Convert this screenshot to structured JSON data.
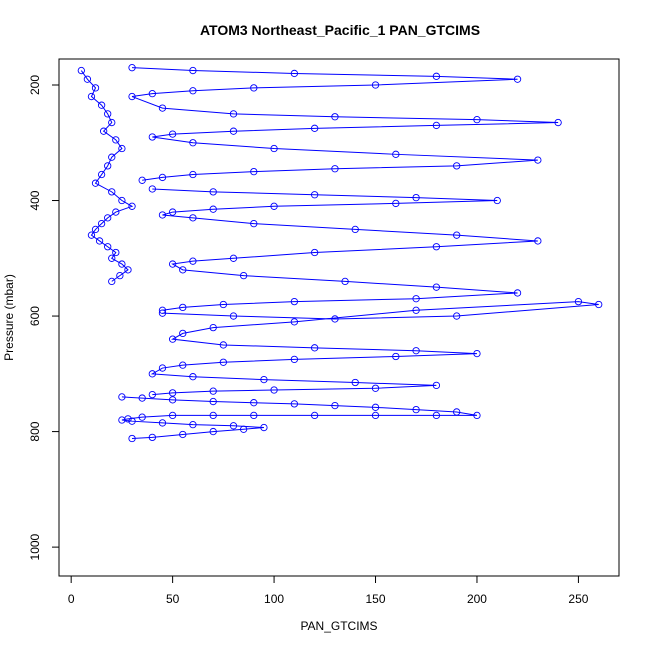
{
  "chart_data": {
    "type": "scatter",
    "title": "ATOM3 Northeast_Pacific_1 PAN_GTCIMS",
    "xlabel": "PAN_GTCIMS",
    "ylabel": "Pressure (mbar)",
    "xlim": [
      -6,
      270
    ],
    "ylim": [
      1050,
      155
    ],
    "y_reversed": true,
    "x_ticks": [
      0,
      50,
      100,
      150,
      200,
      250
    ],
    "y_ticks": [
      200,
      400,
      600,
      800,
      1000
    ],
    "marker": "open-circle",
    "connect_points": true,
    "grid": false,
    "color": "#0000ff",
    "series": [
      {
        "x": [
          5,
          8,
          12,
          10,
          15,
          18,
          20,
          16,
          22,
          25,
          20,
          18,
          15,
          12,
          20,
          25,
          30,
          22,
          18,
          15,
          12,
          10,
          14,
          18,
          22,
          20,
          25,
          28,
          24,
          20
        ],
        "y": [
          175,
          190,
          205,
          220,
          235,
          250,
          265,
          280,
          295,
          310,
          325,
          340,
          355,
          370,
          385,
          400,
          410,
          420,
          430,
          440,
          450,
          460,
          470,
          480,
          490,
          500,
          510,
          520,
          530,
          540
        ]
      },
      {
        "x": [
          30,
          60,
          110,
          180,
          220,
          150,
          90,
          60,
          40,
          30,
          45,
          80,
          130,
          200,
          240,
          180,
          120,
          80,
          50,
          40,
          60,
          100,
          160,
          230,
          190,
          130,
          90,
          60,
          45,
          35
        ],
        "y": [
          170,
          175,
          180,
          185,
          190,
          200,
          205,
          210,
          215,
          220,
          240,
          250,
          255,
          260,
          265,
          270,
          275,
          280,
          285,
          290,
          300,
          310,
          320,
          330,
          340,
          345,
          350,
          355,
          360,
          365
        ]
      },
      {
        "x": [
          40,
          70,
          120,
          170,
          210,
          160,
          100,
          70,
          50,
          45,
          60,
          90,
          140,
          190,
          230,
          180,
          120,
          80,
          60,
          50,
          55,
          85,
          135,
          180,
          220,
          170,
          110,
          75,
          55,
          45
        ],
        "y": [
          380,
          385,
          390,
          395,
          400,
          405,
          410,
          415,
          420,
          425,
          430,
          440,
          450,
          460,
          470,
          480,
          490,
          500,
          505,
          510,
          520,
          530,
          540,
          550,
          560,
          570,
          575,
          580,
          585,
          590
        ]
      },
      {
        "x": [
          45,
          80,
          130,
          190,
          260,
          250,
          170,
          110,
          70,
          55,
          50,
          75,
          120,
          170,
          200,
          160,
          110,
          75,
          55,
          45,
          40,
          60,
          95,
          140,
          180,
          150,
          100,
          70,
          50,
          40
        ],
        "y": [
          595,
          600,
          605,
          600,
          580,
          575,
          590,
          610,
          620,
          630,
          640,
          650,
          655,
          660,
          665,
          670,
          675,
          680,
          685,
          690,
          700,
          705,
          710,
          715,
          720,
          725,
          728,
          730,
          733,
          736
        ]
      },
      {
        "x": [
          25,
          35,
          50,
          70,
          90,
          110,
          130,
          150,
          170,
          190,
          200,
          180,
          150,
          120,
          90,
          70,
          50,
          35,
          28,
          25,
          30,
          45,
          60,
          80,
          95,
          85,
          70,
          55,
          40,
          30
        ],
        "y": [
          740,
          742,
          745,
          748,
          750,
          752,
          755,
          758,
          762,
          766,
          772,
          772,
          772,
          772,
          772,
          772,
          772,
          775,
          778,
          780,
          782,
          785,
          788,
          790,
          793,
          796,
          800,
          805,
          810,
          812
        ]
      }
    ]
  }
}
